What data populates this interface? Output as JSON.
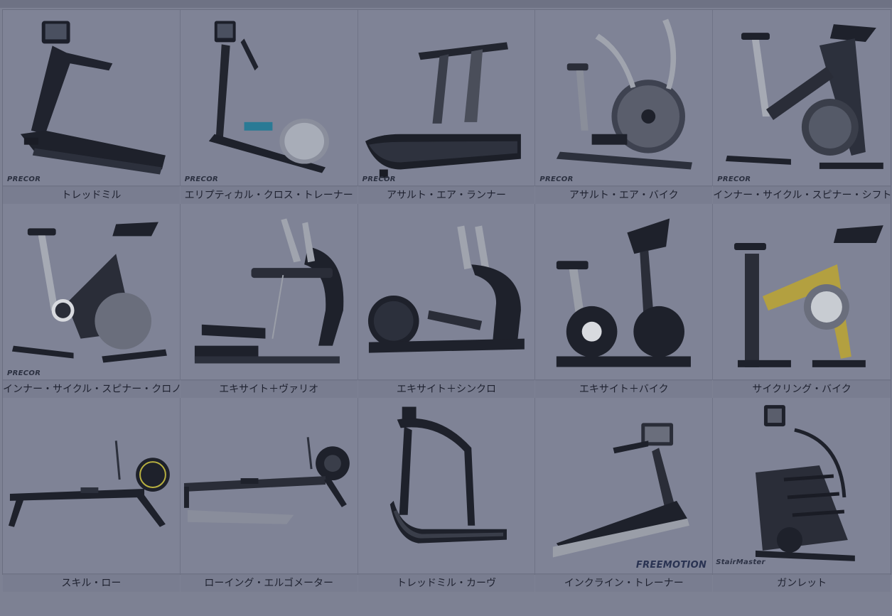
{
  "products": [
    {
      "label": "トレッドミル",
      "brand": "PRECOR",
      "icon": "treadmill"
    },
    {
      "label": "エリプティカル・クロス・トレーナー",
      "brand": "PRECOR",
      "icon": "elliptical"
    },
    {
      "label": "アサルト・エア・ランナー",
      "brand": "PRECOR",
      "icon": "curved-treadmill"
    },
    {
      "label": "アサルト・エア・バイク",
      "brand": "PRECOR",
      "icon": "air-bike"
    },
    {
      "label": "インナー・サイクル・スピナー・シフト",
      "brand": "PRECOR",
      "icon": "spin-bike"
    },
    {
      "label": "インナー・サイクル・スピナー・クロノ",
      "brand": "PRECOR",
      "icon": "spin-bike"
    },
    {
      "label": "エキサイト＋ヴァリオ",
      "brand": "",
      "icon": "vario"
    },
    {
      "label": "エキサイト＋シンクロ",
      "brand": "",
      "icon": "elliptical-synchro"
    },
    {
      "label": "エキサイト＋バイク",
      "brand": "",
      "icon": "upright-bike"
    },
    {
      "label": "サイクリング・バイク",
      "brand": "",
      "icon": "cycling-bike"
    },
    {
      "label": "スキル・ロー",
      "brand": "",
      "icon": "rower"
    },
    {
      "label": "ローイング・エルゴメーター",
      "brand": "",
      "icon": "rowing-erg"
    },
    {
      "label": "トレッドミル・カーヴ",
      "brand": "",
      "icon": "curved-treadmill-tall"
    },
    {
      "label": "インクライン・トレーナー",
      "brand": "FREEMOTION",
      "icon": "incline-trainer"
    },
    {
      "label": "ガンレット",
      "brand": "StairMaster",
      "icon": "stair-climber"
    }
  ]
}
